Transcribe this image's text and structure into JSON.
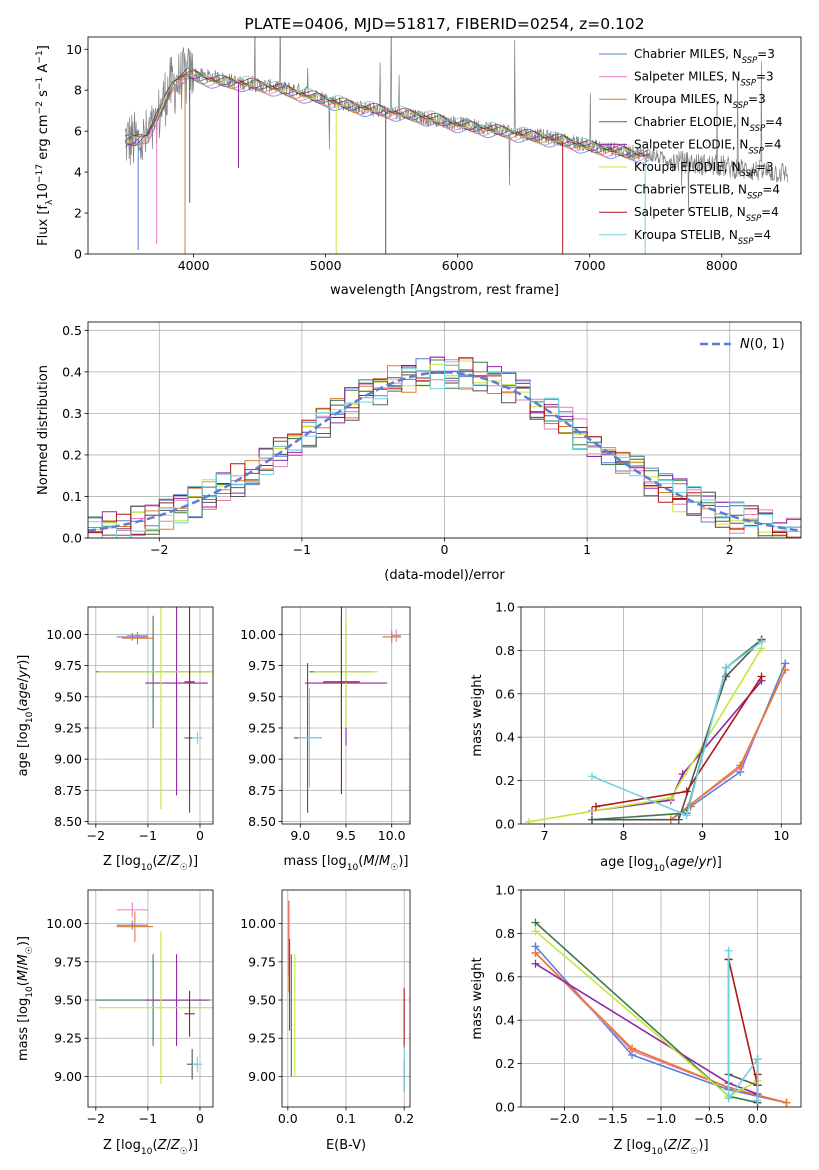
{
  "chart_data": [
    {
      "id": "spectrum",
      "type": "line",
      "title": "PLATE=0406, MJD=51817, FIBERID=0254, z=0.102",
      "xlabel": "wavelength [Angstrom, rest frame]",
      "ylabel": "Flux [f_λ 10^-17 erg cm^-2 s^-1 A^-1]",
      "xlim": [
        3200,
        8600
      ],
      "ylim": [
        0,
        10.6
      ],
      "xticks": [
        4000,
        5000,
        6000,
        7000,
        8000
      ],
      "yticks": [
        0,
        2,
        4,
        6,
        8,
        10
      ],
      "legend_position": "top-right",
      "grid": false,
      "data_series": {
        "name": "",
        "color": "#808080",
        "x": [
          3480,
          3600,
          3700,
          3800,
          3900,
          4000,
          4200,
          4400,
          4600,
          4800,
          5000,
          5200,
          5400,
          5600,
          5800,
          6000,
          6200,
          6400,
          6600,
          6800,
          7000,
          7200,
          7400,
          7600,
          7800,
          8000,
          8200,
          8400,
          8600
        ],
        "y": [
          5.6,
          5.4,
          6.0,
          8.0,
          8.5,
          8.8,
          8.6,
          8.3,
          8.2,
          8.0,
          7.6,
          7.2,
          7.0,
          6.8,
          6.6,
          6.4,
          6.2,
          6.0,
          5.8,
          5.6,
          5.3,
          5.1,
          4.9,
          4.6,
          4.4,
          4.3,
          4.1,
          4.0,
          3.9
        ]
      },
      "models": [
        {
          "name": "Chabrier MILES, N_SSP=3",
          "color": "#5a7fd6"
        },
        {
          "name": "Salpeter MILES, N_SSP=3",
          "color": "#e87cbf"
        },
        {
          "name": "Kroupa MILES, N_SSP=3",
          "color": "#e57a2c"
        },
        {
          "name": "Chabrier ELODIE, N_SSP=4",
          "color": "#3d7a4e"
        },
        {
          "name": "Salpeter ELODIE, N_SSP=4",
          "color": "#8e2aa8"
        },
        {
          "name": "Kroupa ELODIE, N_SSP=3",
          "color": "#c4e83a"
        },
        {
          "name": "Chabrier STELIB, N_SSP=4",
          "color": "#555555"
        },
        {
          "name": "Salpeter STELIB, N_SSP=4",
          "color": "#b01818"
        },
        {
          "name": "Kroupa STELIB, N_SSP=4",
          "color": "#6fd3e0"
        }
      ],
      "model_x": [
        3480,
        3550,
        3650,
        3750,
        3850,
        3950,
        4050,
        4200,
        4400,
        4600,
        4800,
        5000,
        5200,
        5400,
        5600,
        5800,
        6000,
        6200,
        6400,
        6600,
        6800,
        7000,
        7200,
        7400
      ],
      "model_y": [
        5.5,
        5.5,
        5.8,
        7.0,
        8.4,
        8.8,
        8.6,
        8.4,
        8.3,
        8.1,
        7.8,
        7.5,
        7.2,
        7.0,
        6.8,
        6.6,
        6.3,
        6.1,
        5.9,
        5.7,
        5.5,
        5.2,
        5.0,
        4.8
      ]
    },
    {
      "id": "residuals",
      "type": "line",
      "xlabel": "(data-model)/error",
      "ylabel": "Normed distribution",
      "xlim": [
        -2.5,
        2.5
      ],
      "ylim": [
        0,
        0.52
      ],
      "xticks": [
        -2,
        -1,
        0,
        1,
        2
      ],
      "yticks": [
        0.0,
        0.1,
        0.2,
        0.3,
        0.4,
        0.5
      ],
      "grid": true,
      "legend": "N(0,1)",
      "legend_position": "top-right",
      "series": [
        {
          "name": "N(0,1)",
          "color": "#5a7fd6",
          "mu": 0,
          "sigma": 1
        }
      ]
    },
    {
      "id": "age-vs-Z",
      "type": "scatter",
      "xlabel": "Z [log10(Z/Z☉)]",
      "ylabel": "age [log10(age/yr)]",
      "xlim": [
        -2.15,
        0.25
      ],
      "ylim": [
        8.48,
        10.22
      ],
      "xticks": [
        -2,
        -1,
        0
      ],
      "yticks": [
        8.5,
        8.75,
        9.0,
        9.25,
        9.5,
        9.75,
        10.0
      ],
      "grid": true,
      "errorbars": [
        {
          "color": "#5a7fd6",
          "x": -1.3,
          "y": 9.98,
          "xerr": 0.3,
          "yerr": 0.03
        },
        {
          "color": "#e87cbf",
          "x": -1.2,
          "y": 9.99,
          "xerr": 0.2,
          "yerr": 0.03
        },
        {
          "color": "#e57a2c",
          "x": -1.2,
          "y": 9.97,
          "xerr": 0.3,
          "yerr": 0.05
        },
        {
          "color": "#3d7a4e",
          "x": -0.9,
          "y": 9.7,
          "xerr": 1.1,
          "yerr": 0.45
        },
        {
          "color": "#8e2aa8",
          "x": -0.45,
          "y": 9.61,
          "xerr": 0.6,
          "yerr": 0.9
        },
        {
          "color": "#c4e83a",
          "x": -0.75,
          "y": 9.7,
          "xerr": 1.2,
          "yerr": 1.1
        },
        {
          "color": "#555555",
          "x": -0.2,
          "y": 9.17,
          "xerr": 0.1,
          "yerr": 0.6
        },
        {
          "color": "#b01818",
          "x": -0.2,
          "y": 9.62,
          "xerr": 0.1,
          "yerr": 0.9
        },
        {
          "color": "#6fd3e0",
          "x": -0.05,
          "y": 9.17,
          "xerr": 0.1,
          "yerr": 0.05
        }
      ]
    },
    {
      "id": "age-vs-mass",
      "type": "scatter",
      "xlabel": "mass [log10(M/M☉)]",
      "xlim": [
        8.8,
        10.2
      ],
      "ylim": [
        8.48,
        10.22
      ],
      "xticks": [
        9.0,
        9.5,
        10.0
      ],
      "yticks": [
        8.5,
        8.75,
        9.0,
        9.25,
        9.5,
        9.75,
        10.0
      ],
      "grid": true,
      "errorbars": [
        {
          "color": "#5a7fd6",
          "x": 10.0,
          "y": 9.98,
          "xerr": 0.1,
          "yerr": 0.02
        },
        {
          "color": "#e87cbf",
          "x": 10.05,
          "y": 9.99,
          "xerr": 0.05,
          "yerr": 0.05
        },
        {
          "color": "#e57a2c",
          "x": 10.0,
          "y": 9.98,
          "xerr": 0.1,
          "yerr": 0.05
        },
        {
          "color": "#3d7a4e",
          "x": 9.45,
          "y": 9.7,
          "xerr": 0.35,
          "yerr": 0.45
        },
        {
          "color": "#8e2aa8",
          "x": 9.5,
          "y": 9.61,
          "xerr": 0.45,
          "yerr": 0.5
        },
        {
          "color": "#c4e83a",
          "x": 9.5,
          "y": 9.7,
          "xerr": 0.35,
          "yerr": 0.45
        },
        {
          "color": "#555555",
          "x": 9.08,
          "y": 9.17,
          "xerr": 0.15,
          "yerr": 0.6
        },
        {
          "color": "#b01818",
          "x": 9.45,
          "y": 9.62,
          "xerr": 0.2,
          "yerr": 0.9
        },
        {
          "color": "#6fd3e0",
          "x": 9.1,
          "y": 9.17,
          "xerr": 0.12,
          "yerr": 0.4
        }
      ]
    },
    {
      "id": "weight-vs-age",
      "type": "line",
      "xlabel": "age [log10(age/yr)]",
      "ylabel": "mass weight",
      "xlim": [
        6.7,
        10.25
      ],
      "ylim": [
        0,
        1.0
      ],
      "xticks": [
        7,
        8,
        9,
        10
      ],
      "yticks": [
        0.0,
        0.2,
        0.4,
        0.6,
        0.8,
        1.0
      ],
      "grid": true,
      "series": [
        {
          "name": "Chabrier MILES",
          "color": "#5a7fd6",
          "x": [
            8.6,
            8.85,
            9.48,
            10.05
          ],
          "y": [
            0.02,
            0.08,
            0.24,
            0.74
          ]
        },
        {
          "name": "Salpeter MILES",
          "color": "#e87cbf",
          "x": [
            8.6,
            8.85,
            9.48,
            10.05
          ],
          "y": [
            0.02,
            0.09,
            0.26,
            0.71
          ]
        },
        {
          "name": "Kroupa MILES",
          "color": "#e57a2c",
          "x": [
            8.6,
            8.85,
            9.48,
            10.05
          ],
          "y": [
            0.02,
            0.09,
            0.27,
            0.71
          ]
        },
        {
          "name": "Chabrier ELODIE",
          "color": "#3d7a4e",
          "x": [
            7.6,
            8.8,
            9.3,
            9.75
          ],
          "y": [
            0.02,
            0.05,
            0.72,
            0.85
          ]
        },
        {
          "name": "Salpeter ELODIE",
          "color": "#8e2aa8",
          "x": [
            7.6,
            8.6,
            8.75,
            9.75
          ],
          "y": [
            0.06,
            0.11,
            0.23,
            0.66
          ]
        },
        {
          "name": "Kroupa ELODIE",
          "color": "#c4e83a",
          "x": [
            6.8,
            8.6,
            9.75
          ],
          "y": [
            0.01,
            0.12,
            0.81
          ]
        },
        {
          "name": "Chabrier STELIB",
          "color": "#555555",
          "x": [
            7.6,
            8.7,
            9.3,
            9.75
          ],
          "y": [
            0.02,
            0.02,
            0.68,
            0.85
          ]
        },
        {
          "name": "Salpeter STELIB",
          "color": "#b01818",
          "x": [
            7.65,
            8.8,
            9.75
          ],
          "y": [
            0.08,
            0.15,
            0.68
          ]
        },
        {
          "name": "Kroupa STELIB",
          "color": "#6fd3e0",
          "x": [
            7.6,
            8.8,
            9.3,
            9.75
          ],
          "y": [
            0.22,
            0.04,
            0.72,
            0.84
          ]
        }
      ]
    },
    {
      "id": "mass-vs-Z",
      "type": "scatter",
      "xlabel": "Z [log10(Z/Z☉)]",
      "ylabel": "mass [log10(M/M☉)]",
      "xlim": [
        -2.15,
        0.25
      ],
      "ylim": [
        8.8,
        10.22
      ],
      "xticks": [
        -2,
        -1,
        0
      ],
      "yticks": [
        9.0,
        9.25,
        9.5,
        9.75,
        10.0
      ],
      "grid": true,
      "errorbars": [
        {
          "color": "#5a7fd6",
          "x": -1.3,
          "y": 9.99,
          "xerr": 0.3,
          "yerr": 0.03
        },
        {
          "color": "#e87cbf",
          "x": -1.3,
          "y": 10.09,
          "xerr": 0.3,
          "yerr": 0.05
        },
        {
          "color": "#e57a2c",
          "x": -1.25,
          "y": 9.98,
          "xerr": 0.35,
          "yerr": 0.1
        },
        {
          "color": "#3d7a4e",
          "x": -0.9,
          "y": 9.5,
          "xerr": 1.1,
          "yerr": 0.3
        },
        {
          "color": "#8e2aa8",
          "x": -0.45,
          "y": 9.5,
          "xerr": 0.6,
          "yerr": 0.3
        },
        {
          "color": "#c4e83a",
          "x": -0.75,
          "y": 9.45,
          "xerr": 1.2,
          "yerr": 0.5
        },
        {
          "color": "#555555",
          "x": -0.15,
          "y": 9.08,
          "xerr": 0.1,
          "yerr": 0.1
        },
        {
          "color": "#b01818",
          "x": -0.2,
          "y": 9.41,
          "xerr": 0.1,
          "yerr": 0.15
        },
        {
          "color": "#6fd3e0",
          "x": -0.05,
          "y": 9.08,
          "xerr": 0.1,
          "yerr": 0.05
        }
      ]
    },
    {
      "id": "mass-vs-EBV",
      "type": "scatter",
      "xlabel": "E(B-V)",
      "xlim": [
        -0.01,
        0.21
      ],
      "ylim": [
        8.8,
        10.22
      ],
      "xticks": [
        0.0,
        0.1,
        0.2
      ],
      "yticks": [
        9.0,
        9.25,
        9.5,
        9.75,
        10.0
      ],
      "grid": true,
      "errorbars": [
        {
          "color": "#e87cbf",
          "x": 0.001,
          "y": 9.9,
          "yerr": 0.25
        },
        {
          "color": "#e57a2c",
          "x": 0.002,
          "y": 9.85,
          "yerr": 0.3
        },
        {
          "color": "#8e2aa8",
          "x": 0.003,
          "y": 9.6,
          "yerr": 0.3
        },
        {
          "color": "#c4e83a",
          "x": 0.012,
          "y": 9.4,
          "yerr": 0.4
        },
        {
          "color": "#3d7a4e",
          "x": 0.006,
          "y": 9.4,
          "yerr": 0.4
        },
        {
          "color": "#b01818",
          "x": 0.2,
          "y": 9.38,
          "yerr": 0.2
        },
        {
          "color": "#555555",
          "x": 0.2,
          "y": 9.0,
          "yerr": 0.1
        },
        {
          "color": "#6fd3e0",
          "x": 0.2,
          "y": 9.05,
          "yerr": 0.15
        }
      ]
    },
    {
      "id": "weight-vs-Z",
      "type": "line",
      "xlabel": "Z [log10(Z/Z☉)]",
      "ylabel": "mass weight",
      "xlim": [
        -2.45,
        0.45
      ],
      "ylim": [
        0,
        1.0
      ],
      "xticks": [
        -2.0,
        -1.5,
        -1.0,
        -0.5,
        0.0
      ],
      "yticks": [
        0.0,
        0.2,
        0.4,
        0.6,
        0.8,
        1.0
      ],
      "grid": true,
      "series": [
        {
          "name": "Chabrier MILES",
          "color": "#5a7fd6",
          "x": [
            -2.3,
            -1.3,
            -0.3,
            0.3
          ],
          "y": [
            0.74,
            0.24,
            0.08,
            0.02
          ]
        },
        {
          "name": "Salpeter MILES",
          "color": "#e87cbf",
          "x": [
            -2.3,
            -1.3,
            -0.3,
            0.3
          ],
          "y": [
            0.71,
            0.26,
            0.09,
            0.02
          ]
        },
        {
          "name": "Kroupa MILES",
          "color": "#e57a2c",
          "x": [
            -2.3,
            -1.3,
            -0.3,
            0.3
          ],
          "y": [
            0.71,
            0.27,
            0.09,
            0.02
          ]
        },
        {
          "name": "Chabrier ELODIE",
          "color": "#3d7a4e",
          "x": [
            -2.3,
            -0.3,
            0.0,
            0.0
          ],
          "y": [
            0.85,
            0.05,
            0.02,
            0.22
          ]
        },
        {
          "name": "Salpeter ELODIE",
          "color": "#8e2aa8",
          "x": [
            -2.3,
            -0.3,
            0.0
          ],
          "y": [
            0.66,
            0.11,
            0.06
          ]
        },
        {
          "name": "Kroupa ELODIE",
          "color": "#c4e83a",
          "x": [
            -2.3,
            -0.3,
            0.0
          ],
          "y": [
            0.81,
            0.05,
            0.12
          ]
        },
        {
          "name": "Chabrier STELIB",
          "color": "#555555",
          "x": [
            -0.3,
            -0.3,
            0.0,
            0.0
          ],
          "y": [
            0.68,
            0.15,
            0.1,
            0.02
          ]
        },
        {
          "name": "Salpeter STELIB",
          "color": "#b01818",
          "x": [
            -0.3,
            0.0,
            0.0
          ],
          "y": [
            0.68,
            0.1,
            0.15
          ]
        },
        {
          "name": "Kroupa STELIB",
          "color": "#6fd3e0",
          "x": [
            -0.3,
            -0.3,
            0.0,
            0.0
          ],
          "y": [
            0.72,
            0.04,
            0.22,
            0.03
          ]
        }
      ]
    }
  ]
}
